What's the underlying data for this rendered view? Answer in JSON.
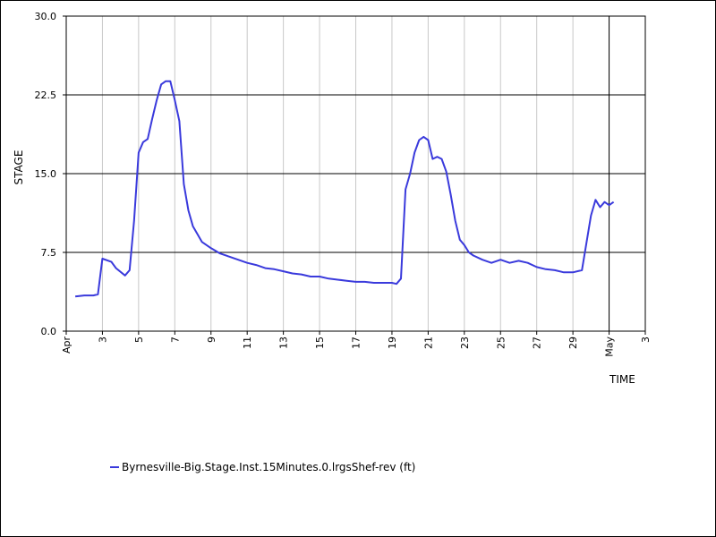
{
  "chart_data": {
    "type": "line",
    "xlabel": "TIME",
    "ylabel": "STAGE",
    "ylim": [
      0,
      30
    ],
    "y_ticks": [
      "0.0",
      "7.5",
      "15.0",
      "22.5",
      "30.0"
    ],
    "x_range": [
      "2025-04-01",
      "2025-05-03"
    ],
    "x_ticks": [
      {
        "date": "2025-04-01",
        "label": "Apr",
        "month": true
      },
      {
        "date": "2025-04-03",
        "label": "3"
      },
      {
        "date": "2025-04-05",
        "label": "5"
      },
      {
        "date": "2025-04-07",
        "label": "7"
      },
      {
        "date": "2025-04-09",
        "label": "9"
      },
      {
        "date": "2025-04-11",
        "label": "11"
      },
      {
        "date": "2025-04-13",
        "label": "13"
      },
      {
        "date": "2025-04-15",
        "label": "15"
      },
      {
        "date": "2025-04-17",
        "label": "17"
      },
      {
        "date": "2025-04-19",
        "label": "19"
      },
      {
        "date": "2025-04-21",
        "label": "21"
      },
      {
        "date": "2025-04-23",
        "label": "23"
      },
      {
        "date": "2025-04-25",
        "label": "25"
      },
      {
        "date": "2025-04-27",
        "label": "27"
      },
      {
        "date": "2025-04-29",
        "label": "29"
      },
      {
        "date": "2025-05-01",
        "label": "May",
        "month": true
      },
      {
        "date": "2025-05-03",
        "label": "3"
      }
    ],
    "grid": {
      "vertical_minor": true,
      "horizontal_major": true
    },
    "marker_line_date": "2025-05-01",
    "legend_position": "bottom-left",
    "series": [
      {
        "name": "Byrnesville-Big.Stage.Inst.15Minutes.0.lrgsShef-rev (ft)",
        "color": "#3a3adc",
        "x": [
          "2025-04-01 12:00",
          "2025-04-02 00:00",
          "2025-04-02 12:00",
          "2025-04-02 18:00",
          "2025-04-03 00:00",
          "2025-04-03 12:00",
          "2025-04-03 18:00",
          "2025-04-04 06:00",
          "2025-04-04 12:00",
          "2025-04-04 18:00",
          "2025-04-05 00:00",
          "2025-04-05 06:00",
          "2025-04-05 12:00",
          "2025-04-05 18:00",
          "2025-04-06 00:00",
          "2025-04-06 06:00",
          "2025-04-06 12:00",
          "2025-04-06 18:00",
          "2025-04-07 00:00",
          "2025-04-07 06:00",
          "2025-04-07 12:00",
          "2025-04-07 18:00",
          "2025-04-08 00:00",
          "2025-04-08 12:00",
          "2025-04-09 00:00",
          "2025-04-09 12:00",
          "2025-04-10 00:00",
          "2025-04-10 12:00",
          "2025-04-11 00:00",
          "2025-04-11 12:00",
          "2025-04-12 00:00",
          "2025-04-12 12:00",
          "2025-04-13 00:00",
          "2025-04-13 12:00",
          "2025-04-14 00:00",
          "2025-04-14 12:00",
          "2025-04-15 00:00",
          "2025-04-15 12:00",
          "2025-04-16 00:00",
          "2025-04-16 12:00",
          "2025-04-17 00:00",
          "2025-04-17 12:00",
          "2025-04-18 00:00",
          "2025-04-18 12:00",
          "2025-04-19 00:00",
          "2025-04-19 06:00",
          "2025-04-19 12:00",
          "2025-04-19 18:00",
          "2025-04-20 00:00",
          "2025-04-20 06:00",
          "2025-04-20 12:00",
          "2025-04-20 18:00",
          "2025-04-21 00:00",
          "2025-04-21 06:00",
          "2025-04-21 12:00",
          "2025-04-21 18:00",
          "2025-04-22 00:00",
          "2025-04-22 06:00",
          "2025-04-22 12:00",
          "2025-04-22 18:00",
          "2025-04-23 00:00",
          "2025-04-23 06:00",
          "2025-04-23 12:00",
          "2025-04-24 00:00",
          "2025-04-24 12:00",
          "2025-04-25 00:00",
          "2025-04-25 12:00",
          "2025-04-26 00:00",
          "2025-04-26 12:00",
          "2025-04-27 00:00",
          "2025-04-27 12:00",
          "2025-04-28 00:00",
          "2025-04-28 12:00",
          "2025-04-29 00:00",
          "2025-04-29 12:00",
          "2025-04-30 00:00",
          "2025-04-30 06:00",
          "2025-04-30 12:00",
          "2025-04-30 18:00",
          "2025-05-01 00:00",
          "2025-05-01 06:00"
        ],
        "y": [
          3.3,
          3.4,
          3.4,
          3.5,
          6.9,
          6.6,
          6.0,
          5.3,
          5.8,
          10.5,
          17.0,
          18.0,
          18.3,
          20.2,
          22.0,
          23.5,
          23.8,
          23.8,
          22.0,
          20.0,
          14.0,
          11.5,
          10.0,
          8.5,
          7.9,
          7.4,
          7.1,
          6.8,
          6.5,
          6.3,
          6.0,
          5.9,
          5.7,
          5.5,
          5.4,
          5.2,
          5.2,
          5.0,
          4.9,
          4.8,
          4.7,
          4.7,
          4.6,
          4.6,
          4.6,
          4.5,
          5.0,
          13.5,
          15.0,
          17.0,
          18.2,
          18.5,
          18.2,
          16.4,
          16.6,
          16.4,
          15.2,
          13.0,
          10.5,
          8.7,
          8.2,
          7.5,
          7.2,
          6.8,
          6.5,
          6.8,
          6.5,
          6.7,
          6.5,
          6.1,
          5.9,
          5.8,
          5.6,
          5.6,
          5.8,
          11.0,
          12.5,
          11.8,
          12.3,
          12.0,
          12.3
        ]
      }
    ]
  }
}
